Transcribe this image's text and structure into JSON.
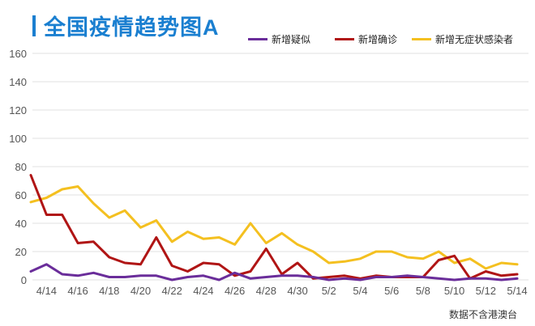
{
  "title": "全国疫情趋势图A",
  "note": "数据不含港澳台",
  "colors": {
    "suspected": "#6a2d9a",
    "confirmed": "#b01515",
    "asymptomatic": "#f4c020",
    "grid": "#e2e2e2",
    "accent": "#1a7fd0"
  },
  "chart_data": {
    "type": "line",
    "title": "全国疫情趋势图A",
    "xlabel": "",
    "ylabel": "",
    "ylim": [
      0,
      160
    ],
    "yticks": [
      0,
      20,
      40,
      60,
      80,
      100,
      120,
      140,
      160
    ],
    "legend_position": "top-right",
    "grid": true,
    "x": [
      "4/13",
      "4/14",
      "4/15",
      "4/16",
      "4/17",
      "4/18",
      "4/19",
      "4/20",
      "4/21",
      "4/22",
      "4/23",
      "4/24",
      "4/25",
      "4/26",
      "4/27",
      "4/28",
      "4/29",
      "4/30",
      "5/1",
      "5/2",
      "5/3",
      "5/4",
      "5/5",
      "5/6",
      "5/7",
      "5/8",
      "5/9",
      "5/10",
      "5/11",
      "5/12",
      "5/13",
      "5/14"
    ],
    "xtick_labels": [
      "4/14",
      "4/16",
      "4/18",
      "4/20",
      "4/22",
      "4/24",
      "4/26",
      "4/28",
      "4/30",
      "5/2",
      "5/4",
      "5/6",
      "5/8",
      "5/10",
      "5/12",
      "5/14"
    ],
    "series": [
      {
        "name": "新增疑似",
        "key": "suspected",
        "values": [
          6,
          11,
          4,
          3,
          5,
          2,
          2,
          3,
          3,
          0,
          2,
          3,
          0,
          5,
          1,
          2,
          3,
          3,
          2,
          0,
          1,
          0,
          2,
          2,
          3,
          2,
          1,
          0,
          1,
          1,
          0,
          1
        ]
      },
      {
        "name": "新增确诊",
        "key": "confirmed",
        "values": [
          74,
          46,
          46,
          26,
          27,
          16,
          12,
          11,
          30,
          10,
          6,
          12,
          11,
          3,
          6,
          22,
          4,
          12,
          1,
          2,
          3,
          1,
          3,
          2,
          2,
          2,
          14,
          17,
          1,
          6,
          3,
          4
        ]
      },
      {
        "name": "新增无症状感染者",
        "key": "asymptomatic",
        "values": [
          55,
          58,
          64,
          66,
          54,
          44,
          49,
          37,
          42,
          27,
          34,
          29,
          30,
          25,
          40,
          26,
          33,
          25,
          20,
          12,
          13,
          15,
          20,
          20,
          16,
          15,
          20,
          12,
          15,
          8,
          12,
          11
        ]
      }
    ]
  }
}
